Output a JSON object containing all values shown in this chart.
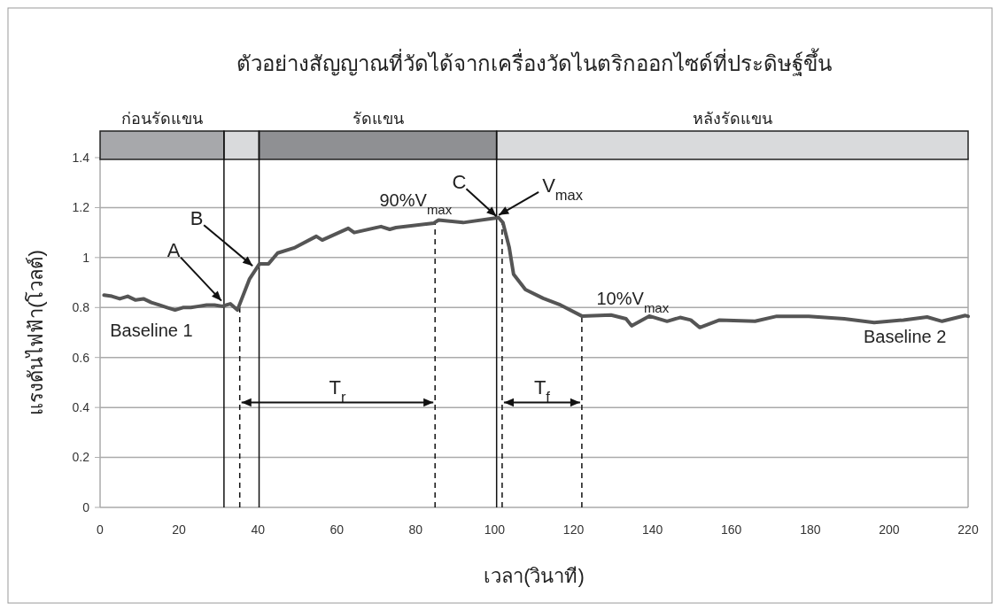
{
  "chart_data": {
    "type": "line",
    "title": "ตัวอย่างสัญญาณที่วัดได้จากเครื่องวัดไนตริกออกไซด์ที่ประดิษฐ์ขึ้น",
    "xlabel": "เวลา(วินาที)",
    "ylabel": "แรงดันไฟฟ้า(โวลต์)",
    "xlim": [
      0,
      220
    ],
    "xticks": [
      0,
      20,
      40,
      60,
      80,
      100,
      120,
      140,
      160,
      180,
      200,
      220
    ],
    "ylim": [
      0,
      1.4
    ],
    "yticks": [
      0,
      0.2,
      0.4,
      0.6,
      0.8,
      1,
      1.2,
      1.4
    ],
    "grid": "y",
    "marker": "none",
    "line_style": "solid",
    "series": [
      {
        "color": "#555555",
        "x": [
          1,
          3,
          5,
          7,
          9,
          11,
          13,
          15,
          17,
          19,
          21,
          23,
          25,
          27,
          29,
          31,
          33,
          34.8,
          37.9,
          40.4,
          42.7,
          45,
          49.4,
          54.8,
          56.3,
          62.9,
          64.4,
          71.2,
          73.4,
          75,
          84.6,
          85.8,
          92,
          101,
          102.1,
          103.7,
          104.8,
          107.8,
          112.3,
          116.7,
          122.1,
          129.5,
          133.3,
          134.7,
          139.2,
          143.7,
          147,
          149.7,
          152,
          157,
          166,
          171.5,
          179.6,
          188.6,
          196.2,
          203.6,
          209.6,
          213.4,
          219.3,
          220
        ],
        "values": [
          0.85,
          0.845,
          0.835,
          0.845,
          0.83,
          0.835,
          0.82,
          0.81,
          0.8,
          0.79,
          0.8,
          0.8,
          0.805,
          0.81,
          0.81,
          0.805,
          0.815,
          0.79,
          0.915,
          0.975,
          0.975,
          1.018,
          1.04,
          1.085,
          1.07,
          1.117,
          1.1,
          1.124,
          1.113,
          1.12,
          1.138,
          1.15,
          1.14,
          1.16,
          1.14,
          1.04,
          0.933,
          0.872,
          0.837,
          0.81,
          0.766,
          0.77,
          0.755,
          0.727,
          0.766,
          0.745,
          0.76,
          0.75,
          0.72,
          0.75,
          0.745,
          0.765,
          0.765,
          0.755,
          0.74,
          0.75,
          0.762,
          0.745,
          0.768,
          0.765
        ]
      }
    ],
    "ref_lines": [
      {
        "axis": "x",
        "value": 31.4,
        "line_style": "solid"
      },
      {
        "axis": "x",
        "value": 40.3,
        "line_style": "solid"
      },
      {
        "axis": "x",
        "value": 100.5,
        "line_style": "solid"
      },
      {
        "axis": "x",
        "value": 35.4,
        "line_style": "dashed"
      },
      {
        "axis": "x",
        "value": 84.9,
        "line_style": "dashed"
      },
      {
        "axis": "x",
        "value": 101.9,
        "line_style": "dashed"
      },
      {
        "axis": "x",
        "value": 122.1,
        "line_style": "dashed"
      }
    ],
    "annotations": [
      {
        "text": "A",
        "x": 30.3,
        "y": 0.82
      },
      {
        "text": "B",
        "x": 38.2,
        "y": 0.96
      },
      {
        "text": "C",
        "x": 100,
        "y": 1.158
      },
      {
        "text": "V$_{max}$",
        "x": 101.5,
        "y": 1.163
      },
      "90%V$_{max}$",
      "10%V$_{max}$",
      "Baseline 1",
      "Baseline 2",
      "T$_{r}$",
      "T$_{f}$",
      "ก่อนรัดแขน",
      "รัดแขน",
      "หลังรัดแขน"
    ]
  }
}
